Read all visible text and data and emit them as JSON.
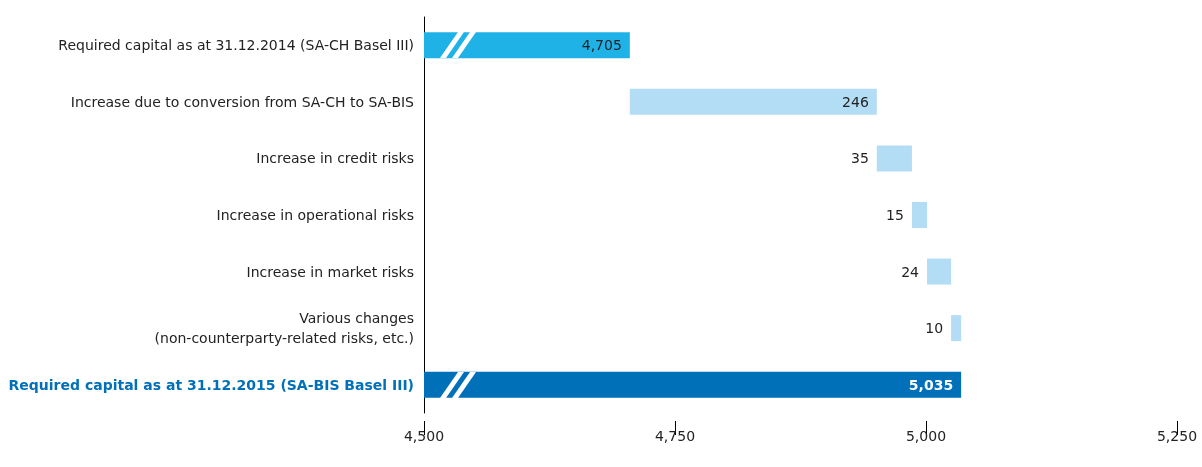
{
  "chart_data": {
    "type": "bar",
    "orientation": "horizontal",
    "categories": [
      "Required capital as at 31.12.2014 (SA-CH Basel III)",
      "Increase due to conversion from SA-CH to SA-BIS",
      "Increase in credit risks",
      "Increase in operational risks",
      "Increase in market risks",
      "Various changes\n(non-counterparty-related risks, etc.)",
      "Required capital as at 31.12.2015 (SA-BIS Basel III)"
    ],
    "values": [
      4705,
      246,
      35,
      15,
      24,
      10,
      5035
    ],
    "base": [
      null,
      4705,
      4951,
      4986,
      5001,
      5025,
      null
    ],
    "colors": [
      "#1fb2e7",
      "#b3dcf5",
      "#b3dcf5",
      "#b3dcf5",
      "#b3dcf5",
      "#b3dcf5",
      "#0070b8"
    ],
    "xlim": [
      4500,
      5250
    ],
    "xticks": [
      {
        "value": 4500,
        "label": "4,500"
      },
      {
        "value": 4750,
        "label": "4,750"
      },
      {
        "value": 5000,
        "label": "5,000"
      },
      {
        "value": 5250,
        "label": "5,250"
      }
    ],
    "value_labels": [
      "4,705",
      "246",
      "35",
      "15",
      "24",
      "10",
      "5,035"
    ],
    "grid": false
  }
}
